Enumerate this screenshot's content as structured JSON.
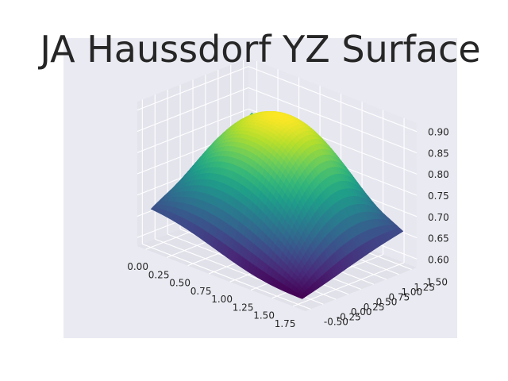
{
  "chart_data": {
    "type": "surface",
    "title": "JA Haussdorf YZ Surface",
    "xlabel": "",
    "ylabel": "",
    "zlabel": "",
    "x_ticks": [
      "0.00",
      "0.25",
      "0.50",
      "0.75",
      "1.00",
      "1.25",
      "1.50",
      "1.75"
    ],
    "y_ticks": [
      "-0.50",
      "-0.25",
      "0.00",
      "0.25",
      "0.50",
      "0.75",
      "1.00",
      "1.25",
      "1.50"
    ],
    "z_ticks": [
      "0.60",
      "0.65",
      "0.70",
      "0.75",
      "0.80",
      "0.85",
      "0.90"
    ],
    "xlim": [
      -0.1,
      1.9
    ],
    "ylim": [
      -0.6,
      1.6
    ],
    "zlim": [
      0.58,
      0.92
    ],
    "colormap": "viridis",
    "grid": true,
    "background": "#eaeaf2",
    "corner_z": {
      "x0_ymin": 0.66,
      "x0_ymax": 0.81,
      "xmax_ymin": 0.6,
      "xmax_ymax": 0.66
    },
    "peak": {
      "x": 0.45,
      "y": 0.6,
      "z": 0.89
    }
  }
}
